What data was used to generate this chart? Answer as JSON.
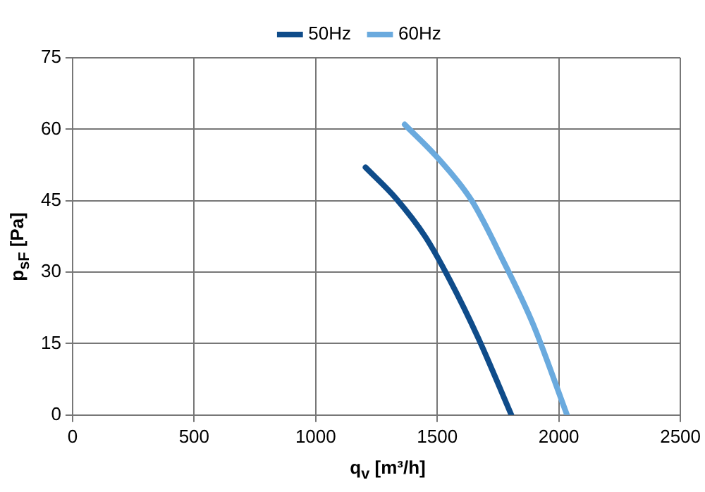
{
  "chart_data": {
    "type": "line",
    "xlabel": "q$_{v}$ [m³/h]",
    "ylabel": "p$_{sF}$ [Pa]",
    "xlim": [
      0,
      2500
    ],
    "xticks": [
      0,
      500,
      1000,
      1500,
      2000,
      2500
    ],
    "ylim": [
      0,
      75
    ],
    "yticks": [
      0,
      15,
      30,
      45,
      60,
      75
    ],
    "grid": true,
    "legend": "top",
    "marker": "none",
    "line_style": "solid",
    "series": [
      {
        "name": "50Hz",
        "color": "#0f4c8a",
        "x": [
          1205,
          1330,
          1450,
          1550,
          1670,
          1805
        ],
        "values": [
          52,
          45.5,
          37.5,
          28.5,
          16,
          0
        ]
      },
      {
        "name": "60Hz",
        "color": "#6aaade",
        "x": [
          1366,
          1507,
          1642,
          1771,
          1893,
          2034
        ],
        "values": [
          61,
          53.7,
          45,
          32.4,
          19.2,
          0
        ]
      }
    ]
  }
}
